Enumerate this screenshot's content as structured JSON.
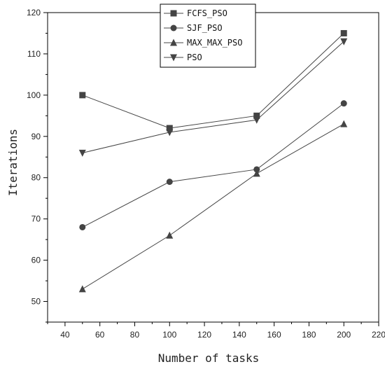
{
  "chart_data": {
    "type": "line",
    "xlabel": "Number of tasks",
    "ylabel": "Iterations",
    "xlim": [
      30,
      220
    ],
    "ylim": [
      45,
      120
    ],
    "xticks": [
      40,
      60,
      80,
      100,
      120,
      140,
      160,
      180,
      200,
      220
    ],
    "yticks": [
      50,
      60,
      70,
      80,
      90,
      100,
      110,
      120
    ],
    "grid": false,
    "legend_position": "top-center",
    "x": [
      50,
      100,
      150,
      200
    ],
    "series": [
      {
        "name": "FCFS_PSO",
        "marker": "square",
        "values": [
          100,
          92,
          95,
          115
        ]
      },
      {
        "name": "SJF_PSO",
        "marker": "circle",
        "values": [
          68,
          79,
          82,
          98
        ]
      },
      {
        "name": "MAX_MAX_PSO",
        "marker": "triangle-up",
        "values": [
          53,
          66,
          81,
          93
        ]
      },
      {
        "name": "PSO",
        "marker": "triangle-down",
        "values": [
          86,
          91,
          94,
          113
        ]
      }
    ],
    "colors": {
      "line": "#444444",
      "marker": "#444444",
      "axis": "#000000"
    }
  }
}
